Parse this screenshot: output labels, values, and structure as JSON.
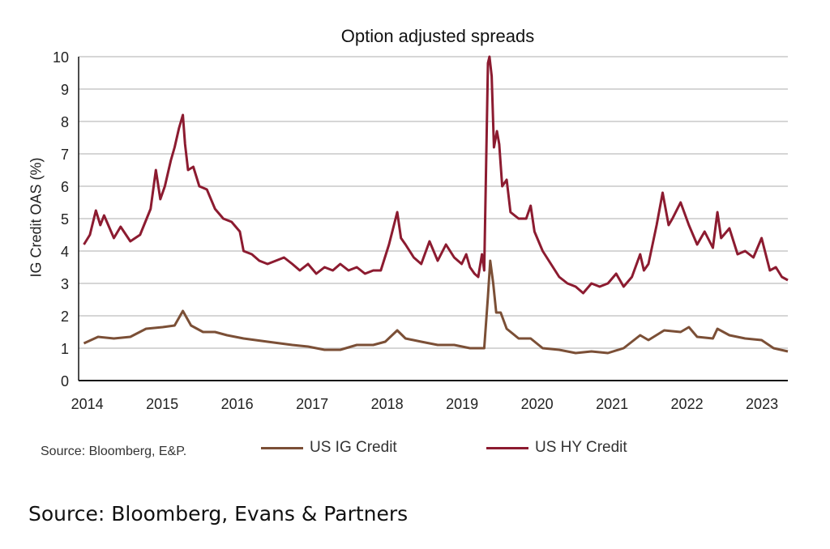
{
  "chart_data": {
    "type": "line",
    "title": "Option adjusted spreads",
    "xlabel": "",
    "ylabel": "IG Credit OAS (%)",
    "xlim": [
      2013.95,
      2023.41
    ],
    "ylim": [
      0,
      10
    ],
    "grid": true,
    "legend_position": "bottom",
    "x_ticks": [
      2014,
      2015,
      2016,
      2017,
      2018,
      2019,
      2020,
      2021,
      2022,
      2023
    ],
    "x_tick_labels": [
      "2014",
      "2015",
      "2016",
      "2017",
      "2018",
      "2019",
      "2020",
      "2021",
      "2022",
      "2023"
    ],
    "y_ticks": [
      0,
      1,
      2,
      3,
      4,
      5,
      6,
      7,
      8,
      9,
      10
    ],
    "y_tick_labels": [
      "0",
      "1",
      "2",
      "3",
      "4",
      "5",
      "6",
      "7",
      "8",
      "9",
      "10"
    ],
    "series": [
      {
        "name": "US IG Credit",
        "color": "#7b4f36",
        "x": [
          2014.02,
          2014.21,
          2014.42,
          2014.64,
          2014.85,
          2015.07,
          2015.23,
          2015.34,
          2015.45,
          2015.61,
          2015.77,
          2015.93,
          2016.15,
          2016.47,
          2016.8,
          2017.01,
          2017.23,
          2017.44,
          2017.66,
          2017.88,
          2018.04,
          2018.2,
          2018.31,
          2018.52,
          2018.74,
          2018.96,
          2019.17,
          2019.36,
          2019.41,
          2019.44,
          2019.48,
          2019.52,
          2019.58,
          2019.66,
          2019.82,
          2019.98,
          2020.14,
          2020.36,
          2020.58,
          2020.79,
          2021.01,
          2021.22,
          2021.44,
          2021.55,
          2021.76,
          2021.98,
          2022.09,
          2022.2,
          2022.41,
          2022.47,
          2022.63,
          2022.84,
          2023.06,
          2023.22,
          2023.41
        ],
        "y": [
          1.15,
          1.35,
          1.3,
          1.35,
          1.6,
          1.65,
          1.7,
          2.15,
          1.7,
          1.5,
          1.5,
          1.4,
          1.3,
          1.2,
          1.1,
          1.05,
          0.95,
          0.95,
          1.1,
          1.1,
          1.2,
          1.55,
          1.3,
          1.2,
          1.1,
          1.1,
          1.0,
          1.0,
          2.6,
          3.7,
          3.0,
          2.1,
          2.1,
          1.6,
          1.3,
          1.3,
          1.0,
          0.95,
          0.85,
          0.9,
          0.85,
          1.0,
          1.4,
          1.25,
          1.55,
          1.5,
          1.65,
          1.35,
          1.3,
          1.6,
          1.4,
          1.3,
          1.25,
          1.0,
          0.9
        ]
      },
      {
        "name": "US HY Credit",
        "color": "#8c1b30",
        "x": [
          2014.02,
          2014.1,
          2014.18,
          2014.24,
          2014.29,
          2014.42,
          2014.51,
          2014.64,
          2014.77,
          2014.91,
          2014.98,
          2015.04,
          2015.1,
          2015.18,
          2015.23,
          2015.29,
          2015.34,
          2015.37,
          2015.41,
          2015.48,
          2015.56,
          2015.66,
          2015.77,
          2015.88,
          2015.99,
          2016.1,
          2016.15,
          2016.26,
          2016.36,
          2016.47,
          2016.58,
          2016.69,
          2016.8,
          2016.9,
          2017.01,
          2017.12,
          2017.23,
          2017.34,
          2017.44,
          2017.55,
          2017.66,
          2017.77,
          2017.88,
          2017.98,
          2018.09,
          2018.2,
          2018.25,
          2018.31,
          2018.42,
          2018.52,
          2018.63,
          2018.74,
          2018.85,
          2018.96,
          2019.06,
          2019.12,
          2019.17,
          2019.23,
          2019.28,
          2019.33,
          2019.36,
          2019.41,
          2019.43,
          2019.46,
          2019.49,
          2019.53,
          2019.56,
          2019.6,
          2019.66,
          2019.71,
          2019.82,
          2019.92,
          2019.98,
          2020.03,
          2020.14,
          2020.25,
          2020.36,
          2020.47,
          2020.58,
          2020.68,
          2020.79,
          2020.9,
          2021.01,
          2021.12,
          2021.22,
          2021.33,
          2021.44,
          2021.49,
          2021.55,
          2021.66,
          2021.74,
          2021.82,
          2021.87,
          2021.98,
          2022.09,
          2022.2,
          2022.3,
          2022.41,
          2022.47,
          2022.52,
          2022.63,
          2022.74,
          2022.84,
          2022.95,
          2023.06,
          2023.17,
          2023.25,
          2023.33,
          2023.41
        ],
        "y": [
          4.2,
          4.5,
          5.25,
          4.8,
          5.1,
          4.4,
          4.75,
          4.3,
          4.5,
          5.3,
          6.5,
          5.6,
          6.0,
          6.8,
          7.2,
          7.8,
          8.2,
          7.3,
          6.5,
          6.6,
          6.0,
          5.9,
          5.3,
          5.0,
          4.9,
          4.6,
          4.0,
          3.9,
          3.7,
          3.6,
          3.7,
          3.8,
          3.6,
          3.4,
          3.6,
          3.3,
          3.5,
          3.4,
          3.6,
          3.4,
          3.5,
          3.3,
          3.4,
          3.4,
          4.2,
          5.2,
          4.4,
          4.2,
          3.8,
          3.6,
          4.3,
          3.7,
          4.2,
          3.8,
          3.6,
          3.9,
          3.5,
          3.3,
          3.2,
          3.9,
          3.4,
          9.8,
          10.0,
          9.4,
          7.2,
          7.7,
          7.3,
          6.0,
          6.2,
          5.2,
          5.0,
          5.0,
          5.4,
          4.6,
          4.0,
          3.6,
          3.2,
          3.0,
          2.9,
          2.7,
          3.0,
          2.9,
          3.0,
          3.3,
          2.9,
          3.2,
          3.9,
          3.4,
          3.6,
          4.8,
          5.8,
          4.8,
          5.0,
          5.5,
          4.8,
          4.2,
          4.6,
          4.1,
          5.2,
          4.4,
          4.7,
          3.9,
          4.0,
          3.8,
          4.4,
          3.4,
          3.5,
          3.2,
          3.1
        ]
      }
    ]
  },
  "legend": {
    "source_note": "Source: Bloomberg, E&P."
  },
  "caption": "Source: Bloomberg, Evans & Partners"
}
